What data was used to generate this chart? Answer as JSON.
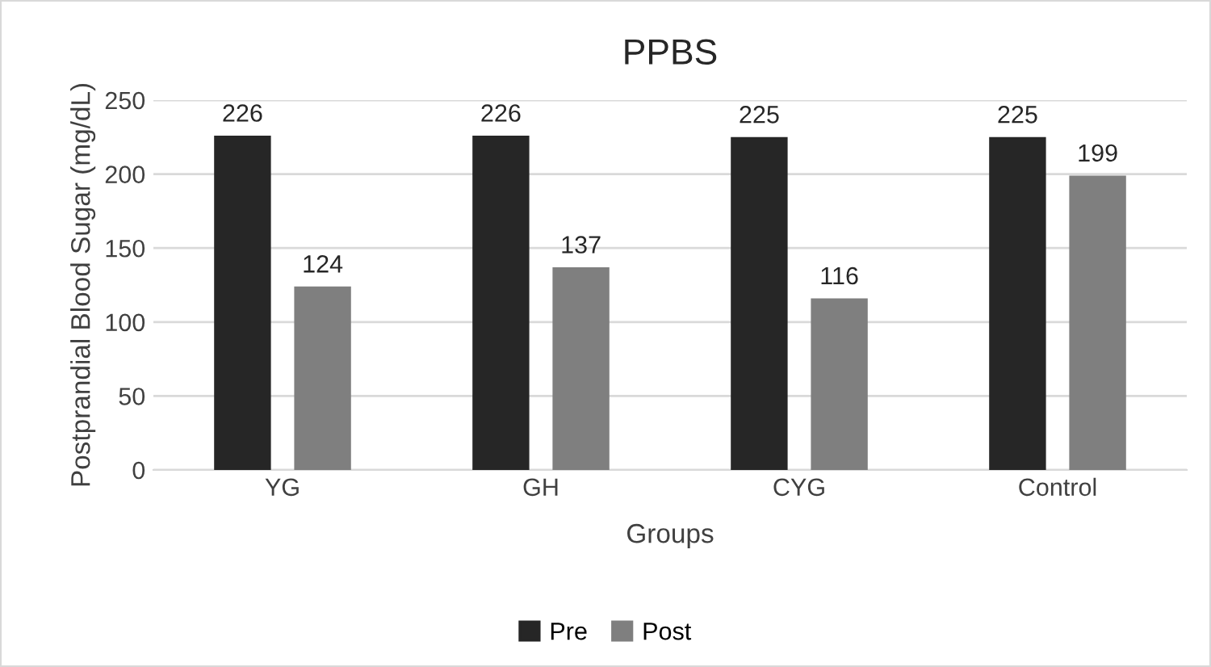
{
  "chart_data": {
    "type": "bar",
    "title": "PPBS",
    "xlabel": "Groups",
    "ylabel": "Postprandial Blood Sugar (mg/dL)",
    "categories": [
      "YG",
      "GH",
      "CYG",
      "Control"
    ],
    "series": [
      {
        "name": "Pre",
        "color": "#262626",
        "values": [
          226,
          226,
          225,
          225
        ]
      },
      {
        "name": "Post",
        "color": "#7f7f7f",
        "values": [
          124,
          137,
          116,
          199
        ]
      }
    ],
    "ylim": [
      0,
      250
    ],
    "yticks": [
      0,
      50,
      100,
      150,
      200,
      250
    ],
    "grid": "y",
    "legend": "bottom",
    "data_labels": true
  }
}
